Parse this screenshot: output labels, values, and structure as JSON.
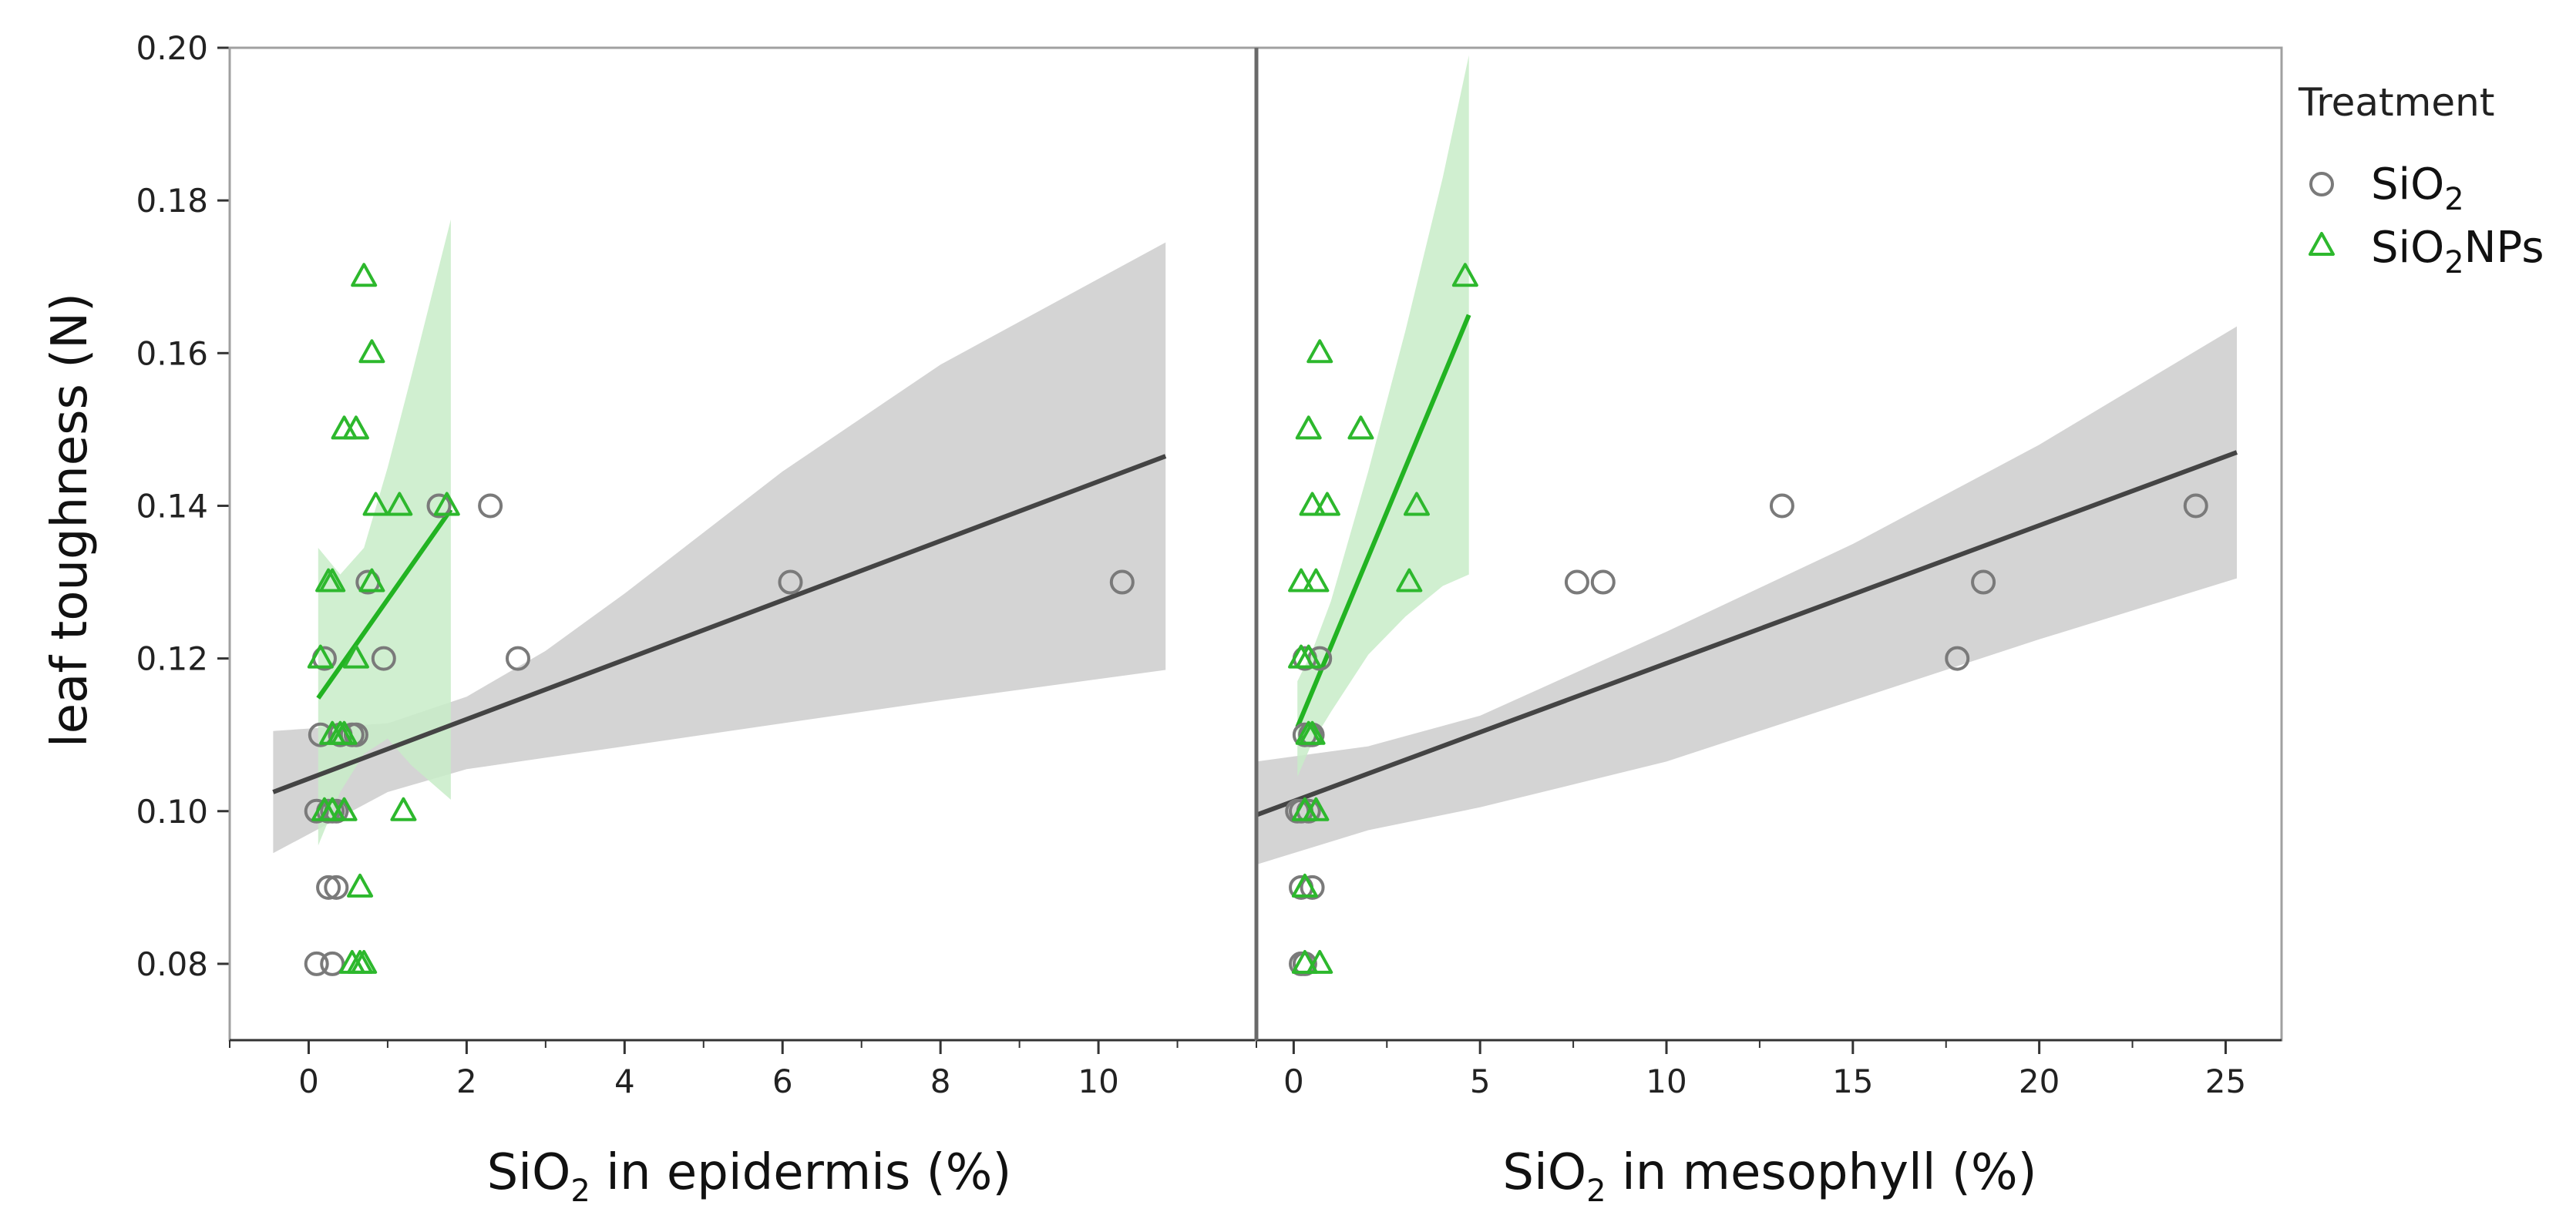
{
  "chart_data": {
    "type": "scatter",
    "y_axis": {
      "label": "leaf toughness (N)",
      "ylim": [
        0.07,
        0.2
      ],
      "ticks": [
        0.08,
        0.1,
        0.12,
        0.14,
        0.16,
        0.18,
        0.2
      ],
      "tick_labels": [
        "0.08",
        "0.10",
        "0.12",
        "0.14",
        "0.16",
        "0.18",
        "0.20"
      ]
    },
    "legend": {
      "title": "Treatment",
      "position": "right",
      "entries": [
        {
          "series": "SiO2",
          "label_main": "SiO",
          "label_sub": "2",
          "label_after": "",
          "color": "#7a7a7a",
          "marker": "circle"
        },
        {
          "series": "SiO2NPs",
          "label_main": "SiO",
          "label_sub": "2",
          "label_after": "NPs",
          "color": "#2db82d",
          "marker": "triangle"
        }
      ]
    },
    "colors": {
      "sio2_marker": "#7a7a7a",
      "sio2_line": "#444444",
      "sio2_band": "#d4d4d4",
      "np_marker": "#2db82d",
      "np_line": "#22b322",
      "np_band": "#c8ecc8",
      "frame": "#a0a0a0"
    },
    "panels": [
      {
        "id": "epidermis",
        "xlabel_main": "SiO",
        "xlabel_sub": "2",
        "xlabel_after": " in epidermis (%)",
        "xlim": [
          -1.0,
          12.0
        ],
        "xticks": [
          0,
          2,
          4,
          6,
          8,
          10
        ],
        "xtick_labels": [
          "0",
          "2",
          "4",
          "6",
          "8",
          "10"
        ],
        "series": [
          {
            "name": "SiO2",
            "points": [
              [
                0.1,
                0.08
              ],
              [
                0.3,
                0.08
              ],
              [
                0.25,
                0.09
              ],
              [
                0.35,
                0.09
              ],
              [
                0.1,
                0.1
              ],
              [
                0.25,
                0.1
              ],
              [
                0.3,
                0.1
              ],
              [
                0.35,
                0.1
              ],
              [
                0.15,
                0.11
              ],
              [
                0.4,
                0.11
              ],
              [
                0.55,
                0.11
              ],
              [
                0.6,
                0.11
              ],
              [
                0.2,
                0.12
              ],
              [
                0.95,
                0.12
              ],
              [
                2.65,
                0.12
              ],
              [
                0.75,
                0.13
              ],
              [
                6.1,
                0.13
              ],
              [
                10.3,
                0.13
              ],
              [
                1.65,
                0.14
              ],
              [
                2.3,
                0.14
              ]
            ],
            "fit": {
              "x": [
                -0.45,
                10.85
              ],
              "y": [
                0.1025,
                0.1465
              ]
            },
            "band": {
              "x": [
                -0.45,
                1.0,
                2.0,
                3.0,
                4.0,
                6.0,
                8.0,
                10.85
              ],
              "upper": [
                0.1105,
                0.1115,
                0.115,
                0.121,
                0.1285,
                0.1445,
                0.1585,
                0.1745
              ],
              "lower": [
                0.0945,
                0.1025,
                0.1055,
                0.107,
                0.1085,
                0.1115,
                0.1145,
                0.1185
              ]
            }
          },
          {
            "name": "SiO2NPs",
            "points": [
              [
                0.55,
                0.08
              ],
              [
                0.65,
                0.08
              ],
              [
                0.7,
                0.08
              ],
              [
                0.65,
                0.09
              ],
              [
                0.2,
                0.1
              ],
              [
                0.3,
                0.1
              ],
              [
                0.45,
                0.1
              ],
              [
                1.2,
                0.1
              ],
              [
                0.3,
                0.11
              ],
              [
                0.4,
                0.11
              ],
              [
                0.45,
                0.11
              ],
              [
                0.15,
                0.12
              ],
              [
                0.6,
                0.12
              ],
              [
                0.25,
                0.13
              ],
              [
                0.3,
                0.13
              ],
              [
                0.8,
                0.13
              ],
              [
                0.85,
                0.14
              ],
              [
                1.15,
                0.14
              ],
              [
                1.75,
                0.14
              ],
              [
                0.45,
                0.15
              ],
              [
                0.6,
                0.15
              ],
              [
                0.8,
                0.16
              ],
              [
                0.7,
                0.17
              ]
            ],
            "fit": {
              "x": [
                0.12,
                1.8
              ],
              "y": [
                0.1148,
                0.1395
              ]
            },
            "band": {
              "x": [
                0.12,
                0.4,
                0.7,
                1.0,
                1.3,
                1.8
              ],
              "upper": [
                0.1345,
                0.131,
                0.1345,
                0.145,
                0.157,
                0.1775
              ],
              "lower": [
                0.0955,
                0.1025,
                0.1075,
                0.1095,
                0.106,
                0.1015
              ]
            }
          }
        ]
      },
      {
        "id": "mesophyll",
        "xlabel_main": "SiO",
        "xlabel_sub": "2",
        "xlabel_after": " in mesophyll (%)",
        "xlim": [
          -1.0,
          26.5
        ],
        "xticks": [
          0,
          5,
          10,
          15,
          20,
          25
        ],
        "xtick_labels": [
          "0",
          "5",
          "10",
          "15",
          "20",
          "25"
        ],
        "series": [
          {
            "name": "SiO2",
            "points": [
              [
                0.2,
                0.08
              ],
              [
                0.3,
                0.08
              ],
              [
                0.2,
                0.09
              ],
              [
                0.5,
                0.09
              ],
              [
                0.1,
                0.1
              ],
              [
                0.2,
                0.1
              ],
              [
                0.4,
                0.1
              ],
              [
                0.3,
                0.11
              ],
              [
                0.45,
                0.11
              ],
              [
                0.5,
                0.11
              ],
              [
                0.3,
                0.12
              ],
              [
                0.7,
                0.12
              ],
              [
                17.8,
                0.12
              ],
              [
                7.6,
                0.13
              ],
              [
                8.3,
                0.13
              ],
              [
                18.5,
                0.13
              ],
              [
                13.1,
                0.14
              ],
              [
                24.2,
                0.14
              ]
            ],
            "fit": {
              "x": [
                -1.0,
                25.3
              ],
              "y": [
                0.0995,
                0.147
              ]
            },
            "band": {
              "x": [
                -1.0,
                2.0,
                5.0,
                10.0,
                15.0,
                20.0,
                25.3
              ],
              "upper": [
                0.1065,
                0.1085,
                0.1125,
                0.1235,
                0.135,
                0.148,
                0.1635
              ],
              "lower": [
                0.093,
                0.0975,
                0.1005,
                0.1065,
                0.1145,
                0.1225,
                0.1305
              ]
            }
          },
          {
            "name": "SiO2NPs",
            "points": [
              [
                0.3,
                0.08
              ],
              [
                0.7,
                0.08
              ],
              [
                0.3,
                0.09
              ],
              [
                0.3,
                0.1
              ],
              [
                0.6,
                0.1
              ],
              [
                0.4,
                0.11
              ],
              [
                0.5,
                0.11
              ],
              [
                0.2,
                0.12
              ],
              [
                0.4,
                0.12
              ],
              [
                0.2,
                0.13
              ],
              [
                0.6,
                0.13
              ],
              [
                3.1,
                0.13
              ],
              [
                0.5,
                0.14
              ],
              [
                0.9,
                0.14
              ],
              [
                3.3,
                0.14
              ],
              [
                0.4,
                0.15
              ],
              [
                1.8,
                0.15
              ],
              [
                0.7,
                0.16
              ],
              [
                4.6,
                0.17
              ]
            ],
            "fit": {
              "x": [
                0.1,
                4.7
              ],
              "y": [
                0.111,
                0.165
              ]
            },
            "band": {
              "x": [
                0.1,
                0.5,
                1.0,
                2.0,
                3.0,
                4.0,
                4.7
              ],
              "upper": [
                0.117,
                0.121,
                0.1275,
                0.1445,
                0.163,
                0.183,
                0.199
              ],
              "lower": [
                0.1045,
                0.109,
                0.113,
                0.1205,
                0.1255,
                0.1295,
                0.131
              ]
            }
          }
        ]
      }
    ]
  }
}
